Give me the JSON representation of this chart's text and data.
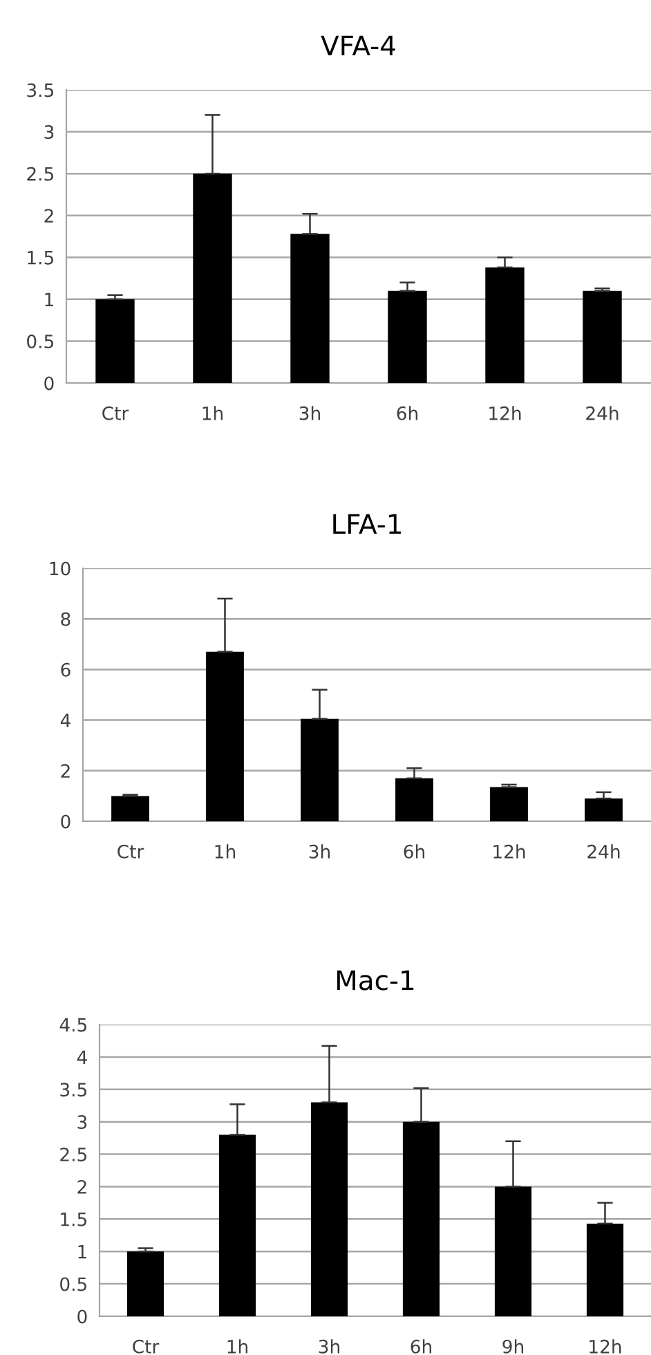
{
  "chart_data": [
    {
      "type": "bar",
      "title": "VFA-4",
      "categories": [
        "Ctr",
        "1h",
        "3h",
        "6h",
        "12h",
        "24h"
      ],
      "series": [
        {
          "color": "#000000",
          "values": [
            1.0,
            2.5,
            1.78,
            1.1,
            1.38,
            1.1
          ],
          "errors": [
            [
              1.0,
              1.05
            ],
            [
              2.5,
              3.2
            ],
            [
              1.78,
              2.02
            ],
            [
              1.1,
              1.2
            ],
            [
              1.38,
              1.5
            ],
            [
              1.1,
              1.13
            ]
          ]
        }
      ],
      "ylim": [
        0,
        3.5
      ],
      "yticks": [
        0,
        0.5,
        1,
        1.5,
        2,
        2.5,
        3,
        3.5
      ],
      "grid": "y",
      "legend": false
    },
    {
      "type": "bar",
      "title": "LFA-1",
      "categories": [
        "Ctr",
        "1h",
        "3h",
        "6h",
        "12h",
        "24h"
      ],
      "series": [
        {
          "color": "#000000",
          "values": [
            1.0,
            6.7,
            4.05,
            1.7,
            1.35,
            0.9
          ],
          "errors": [
            [
              1.0,
              1.05
            ],
            [
              6.7,
              8.8
            ],
            [
              4.05,
              5.2
            ],
            [
              1.7,
              2.1
            ],
            [
              1.35,
              1.45
            ],
            [
              0.9,
              1.15
            ]
          ]
        }
      ],
      "ylim": [
        0,
        10
      ],
      "yticks": [
        0,
        2,
        4,
        6,
        8,
        10
      ],
      "grid": "y",
      "legend": false
    },
    {
      "type": "bar",
      "title": "Mac-1",
      "categories": [
        "Ctr",
        "1h",
        "3h",
        "6h",
        "9h",
        "12h"
      ],
      "series": [
        {
          "color": "#000000",
          "values": [
            1.0,
            2.8,
            3.3,
            3.0,
            2.0,
            1.43
          ],
          "errors": [
            [
              1.0,
              1.05
            ],
            [
              2.8,
              3.27
            ],
            [
              3.3,
              4.17
            ],
            [
              3.0,
              3.52
            ],
            [
              2.0,
              2.7
            ],
            [
              1.43,
              1.75
            ]
          ]
        }
      ],
      "ylim": [
        0,
        4.5
      ],
      "yticks": [
        0,
        0.5,
        1,
        1.5,
        2,
        2.5,
        3,
        3.5,
        4,
        4.5
      ],
      "grid": "y",
      "legend": false
    }
  ]
}
